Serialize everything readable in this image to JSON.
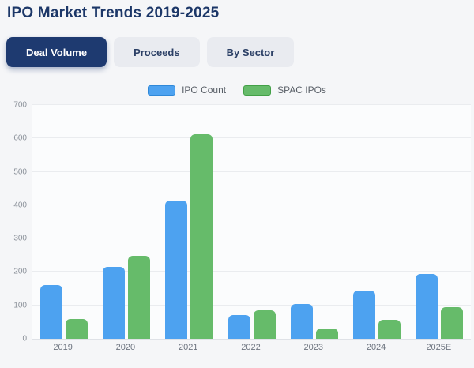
{
  "header": {
    "title": "IPO Market Trends 2019-2025"
  },
  "tabs": [
    {
      "label": "Deal Volume",
      "active": true
    },
    {
      "label": "Proceeds",
      "active": false
    },
    {
      "label": "By Sector",
      "active": false
    }
  ],
  "colors": {
    "accent_navy": "#1e3a70",
    "bar_blue": "#4da2f0",
    "bar_green": "#66bb6a",
    "page_background": "#f5f6f8"
  },
  "chart_data": {
    "type": "bar",
    "title": "IPO Market Trends 2019-2025",
    "categories": [
      "2019",
      "2020",
      "2021",
      "2022",
      "2023",
      "2024",
      "2025E"
    ],
    "series": [
      {
        "name": "IPO Count",
        "color": "#4da2f0",
        "border_color": "#2f88d8",
        "values": [
          160,
          215,
          413,
          70,
          105,
          145,
          195
        ]
      },
      {
        "name": "SPAC IPOs",
        "color": "#66bb6a",
        "border_color": "#43a047",
        "values": [
          59,
          248,
          613,
          86,
          31,
          57,
          95
        ]
      }
    ],
    "xlabel": "",
    "ylabel": "",
    "ylim": [
      0,
      700
    ],
    "yticks": [
      0,
      100,
      200,
      300,
      400,
      500,
      600,
      700
    ],
    "grid": true,
    "legend_position": "top"
  }
}
